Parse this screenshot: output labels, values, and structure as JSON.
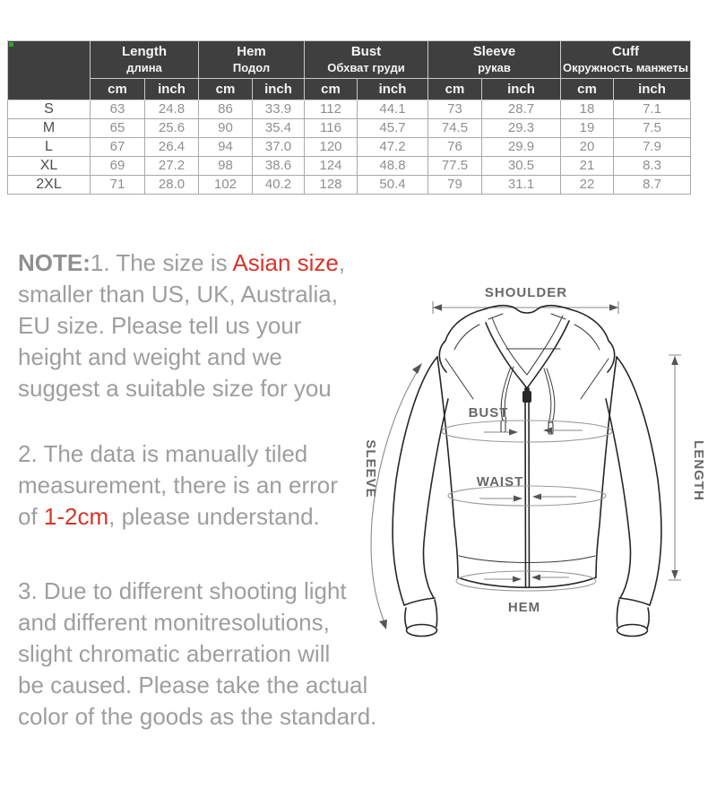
{
  "table": {
    "columns": [
      {
        "en": "Length",
        "ru": "длина"
      },
      {
        "en": "Hem",
        "ru": "Подол"
      },
      {
        "en": "Bust",
        "ru": "Обхват груди"
      },
      {
        "en": "Sleeve",
        "ru": "рукав"
      },
      {
        "en": "Cuff",
        "ru": "Окружность манжеты"
      }
    ],
    "units": [
      "cm",
      "inch"
    ],
    "rows": [
      {
        "size": "S",
        "values": [
          "63",
          "24.8",
          "86",
          "33.9",
          "112",
          "44.1",
          "73",
          "28.7",
          "18",
          "7.1"
        ]
      },
      {
        "size": "M",
        "values": [
          "65",
          "25.6",
          "90",
          "35.4",
          "116",
          "45.7",
          "74.5",
          "29.3",
          "19",
          "7.5"
        ]
      },
      {
        "size": "L",
        "values": [
          "67",
          "26.4",
          "94",
          "37.0",
          "120",
          "47.2",
          "76",
          "29.9",
          "20",
          "7.9"
        ]
      },
      {
        "size": "XL",
        "values": [
          "69",
          "27.2",
          "98",
          "38.6",
          "124",
          "48.8",
          "77.5",
          "30.5",
          "21",
          "8.3"
        ]
      },
      {
        "size": "2XL",
        "values": [
          "71",
          "28.0",
          "102",
          "40.2",
          "128",
          "50.4",
          "79",
          "31.1",
          "22",
          "8.7"
        ]
      }
    ]
  },
  "notes": [
    {
      "lines": [
        [
          {
            "t": "NOTE:",
            "b": true
          },
          {
            "t": "1. The size is "
          },
          {
            "t": "Asian size",
            "r": true
          },
          {
            "t": ","
          }
        ],
        [
          {
            "t": "smaller than US, UK, Australia,"
          }
        ],
        [
          {
            "t": "EU size. Please tell us your"
          }
        ],
        [
          {
            "t": "height and weight and we"
          }
        ],
        [
          {
            "t": "suggest a suitable size for you"
          }
        ]
      ]
    },
    {
      "lines": [
        [
          {
            "t": "2. The data is manually tiled"
          }
        ],
        [
          {
            "t": "measurement, there is an error"
          }
        ],
        [
          {
            "t": "of "
          },
          {
            "t": "1-2cm",
            "r": true
          },
          {
            "t": ", please understand."
          }
        ]
      ]
    },
    {
      "lines": [
        [
          {
            "t": "3. Due to different shooting light"
          }
        ],
        [
          {
            "t": "and different monitresolutions,"
          }
        ],
        [
          {
            "t": "slight chromatic aberration will"
          }
        ],
        [
          {
            "t": "be caused. Please take the actual"
          }
        ],
        [
          {
            "t": "color of the goods as the standard."
          }
        ]
      ]
    }
  ],
  "diagram": {
    "shoulder": "SHOULDER",
    "bust": "BUST",
    "waist": "WAIST",
    "sleeve": "SLEEVE",
    "length": "LENGTH",
    "hem": "HEM"
  },
  "colors": {
    "accent_red": "#d8352a",
    "table_header_bg": "#3f3f3f",
    "corner_green": "#3aa02d",
    "note_gray": "#9e9e9e"
  }
}
